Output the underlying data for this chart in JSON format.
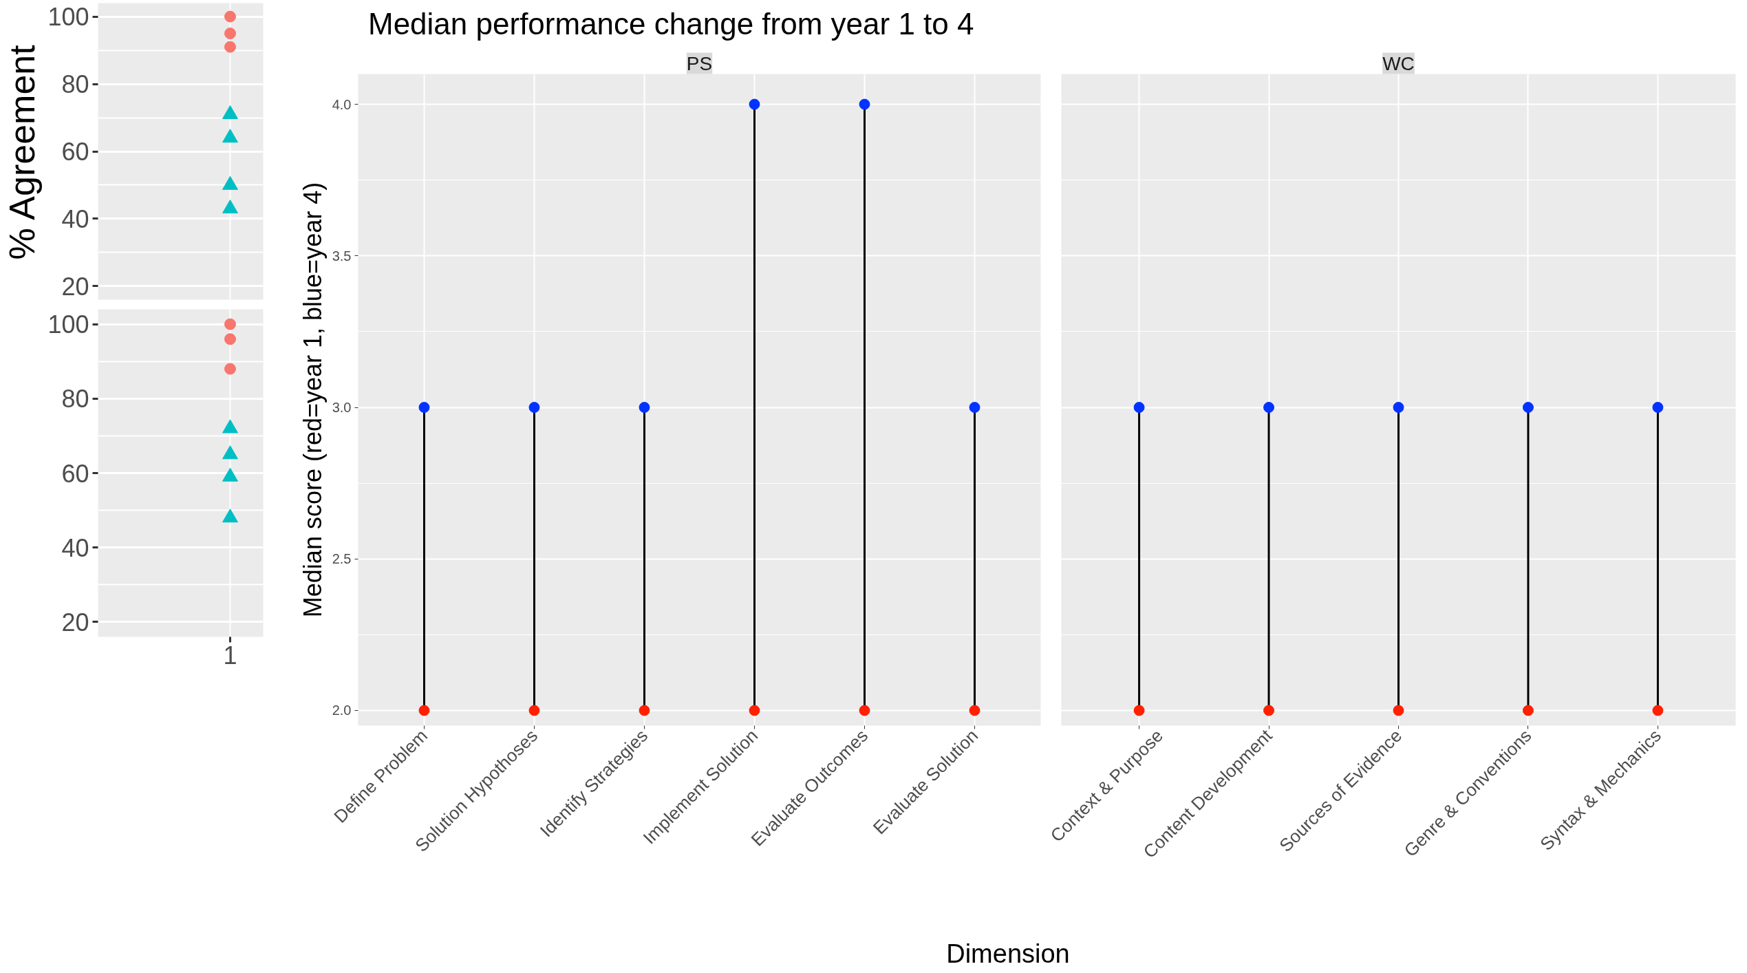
{
  "chart_data": [
    {
      "type": "scatter",
      "ylabel": "% Agreement",
      "categories": [
        "1"
      ],
      "ylim": [
        16,
        104
      ],
      "yticks": [
        20,
        40,
        60,
        80,
        100
      ],
      "grid": true,
      "tick_labels": "y",
      "series": [
        {
          "color": "#f8766d",
          "marker": "circle",
          "x": [
            "1",
            "1",
            "1"
          ],
          "values": [
            100,
            95,
            91
          ]
        },
        {
          "color": "#00bfc4",
          "marker": "triangle",
          "x": [
            "1",
            "1",
            "1",
            "1"
          ],
          "values": [
            71,
            64,
            50,
            43
          ]
        }
      ]
    },
    {
      "type": "scatter",
      "categories": [
        "1"
      ],
      "ylim": [
        16,
        104
      ],
      "yticks": [
        20,
        40,
        60,
        80,
        100
      ],
      "grid": true,
      "series": [
        {
          "color": "#f8766d",
          "marker": "circle",
          "x": [
            "1",
            "1",
            "1"
          ],
          "values": [
            100,
            96,
            88
          ]
        },
        {
          "color": "#00bfc4",
          "marker": "triangle",
          "x": [
            "1",
            "1",
            "1",
            "1"
          ],
          "values": [
            72,
            65,
            59,
            48
          ]
        }
      ]
    },
    {
      "type": "scatter",
      "title": "Median performance change from year 1 to 4",
      "subtitle": "PS",
      "xlabel": "Dimension",
      "ylabel": "Median score (red=year 1, blue=year 4)",
      "categories": [
        "Define Problem",
        "Solution Hypothoses",
        "Identify Strategies",
        "Implement Solution",
        "Evaluate Outcomes",
        "Evaluate Solution"
      ],
      "ylim": [
        1.95,
        4.1
      ],
      "yticks": [
        {
          "value": 2,
          "label": "2.0"
        },
        {
          "value": 2.5,
          "label": "2.5"
        },
        {
          "value": 3,
          "label": "3.0"
        },
        {
          "value": 3.5,
          "label": "3.5"
        },
        {
          "value": 4,
          "label": "4.0"
        }
      ],
      "grid": true,
      "marker": "circle",
      "series": [
        {
          "color": "#ff2000",
          "values": [
            2,
            2,
            2,
            2,
            2,
            2
          ]
        },
        {
          "color": "#0033ff",
          "values": [
            3,
            3,
            3,
            4,
            4,
            3
          ]
        }
      ]
    },
    {
      "type": "scatter",
      "subtitle": "WC",
      "tick_labels": "x",
      "categories": [
        "Context & Purpose",
        "Content Development",
        "Sources of Evidence",
        "Genre & Conventions",
        "Syntax & Mechanics"
      ],
      "ylim": [
        1.95,
        4.1
      ],
      "yticks": [
        2,
        2.5,
        3,
        3.5,
        4
      ],
      "grid": true,
      "marker": "circle",
      "series": [
        {
          "color": "#ff2000",
          "values": [
            2,
            2,
            2,
            2,
            2
          ]
        },
        {
          "color": "#0033ff",
          "values": [
            3,
            3,
            3,
            3,
            3
          ]
        }
      ]
    }
  ]
}
